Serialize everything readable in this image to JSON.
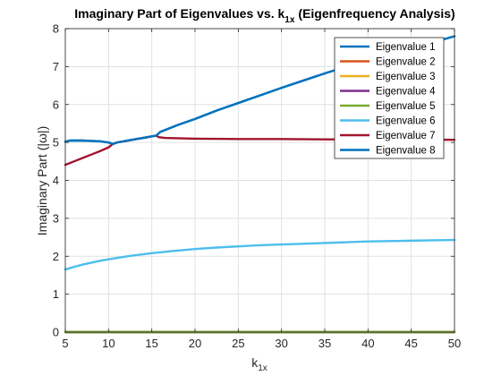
{
  "chart_data": {
    "type": "line",
    "title": "Imaginary Part of Eigenvalues vs. k",
    "title_sub": "1x",
    "title_suffix": "(Eigenfrequency Analysis)",
    "xlabel": "k",
    "xlabel_sub": "1x",
    "ylabel": "Imaginary Part (|ω|)",
    "xlim": [
      5,
      50
    ],
    "ylim": [
      0,
      8
    ],
    "xticks": [
      5,
      10,
      15,
      20,
      25,
      30,
      35,
      40,
      45,
      50
    ],
    "yticks": [
      0,
      1,
      2,
      3,
      4,
      5,
      6,
      7,
      8
    ],
    "grid": true,
    "legend_position": "top-right",
    "series": [
      {
        "name": "Eigenvalue 1",
        "color": "#0072BD",
        "points": [
          [
            5,
            5.02
          ],
          [
            5.5,
            5.05
          ],
          [
            6,
            5.05
          ],
          [
            7,
            5.05
          ],
          [
            8,
            5.04
          ],
          [
            9,
            5.03
          ],
          [
            10,
            5.0
          ],
          [
            10.5,
            4.96
          ],
          [
            11,
            5.0
          ],
          [
            12,
            5.04
          ],
          [
            13,
            5.08
          ],
          [
            14,
            5.12
          ],
          [
            15,
            5.16
          ],
          [
            15.5,
            5.18
          ],
          [
            16,
            5.28
          ],
          [
            17,
            5.37
          ],
          [
            18,
            5.46
          ],
          [
            20,
            5.62
          ],
          [
            22.5,
            5.84
          ],
          [
            25,
            6.04
          ],
          [
            27.5,
            6.24
          ],
          [
            30,
            6.44
          ],
          [
            32.5,
            6.63
          ],
          [
            35,
            6.82
          ],
          [
            37.5,
            7.0
          ],
          [
            40,
            7.16
          ],
          [
            42.5,
            7.34
          ],
          [
            45,
            7.49
          ],
          [
            47.5,
            7.64
          ],
          [
            50,
            7.8
          ]
        ]
      },
      {
        "name": "Eigenvalue 2",
        "color": "#D95319",
        "points": [
          [
            5,
            0
          ],
          [
            50,
            0
          ]
        ]
      },
      {
        "name": "Eigenvalue 3",
        "color": "#EDB120",
        "points": [
          [
            5,
            0
          ],
          [
            50,
            0
          ]
        ]
      },
      {
        "name": "Eigenvalue 4",
        "color": "#7E2F8E",
        "points": [
          [
            5,
            0
          ],
          [
            50,
            0
          ]
        ]
      },
      {
        "name": "Eigenvalue 5",
        "color": "#77AC30",
        "points": [
          [
            5,
            0
          ],
          [
            50,
            0
          ]
        ]
      },
      {
        "name": "Eigenvalue 6",
        "color": "#4DBEEE",
        "points": [
          [
            5,
            1.65
          ],
          [
            6,
            1.72
          ],
          [
            7,
            1.78
          ],
          [
            8,
            1.83
          ],
          [
            9,
            1.88
          ],
          [
            10,
            1.92
          ],
          [
            12.5,
            2.01
          ],
          [
            15,
            2.08
          ],
          [
            17.5,
            2.14
          ],
          [
            20,
            2.19
          ],
          [
            22.5,
            2.23
          ],
          [
            25,
            2.26
          ],
          [
            27.5,
            2.29
          ],
          [
            30,
            2.31
          ],
          [
            32.5,
            2.33
          ],
          [
            35,
            2.35
          ],
          [
            37.5,
            2.37
          ],
          [
            40,
            2.39
          ],
          [
            42.5,
            2.4
          ],
          [
            45,
            2.41
          ],
          [
            47.5,
            2.42
          ],
          [
            50,
            2.43
          ]
        ]
      },
      {
        "name": "Eigenvalue 7",
        "color": "#A2142F",
        "points": [
          [
            5,
            4.41
          ],
          [
            6,
            4.5
          ],
          [
            7,
            4.59
          ],
          [
            8,
            4.68
          ],
          [
            9,
            4.77
          ],
          [
            10,
            4.87
          ],
          [
            10.5,
            4.96
          ],
          [
            11,
            5.0
          ],
          [
            12,
            5.04
          ],
          [
            13,
            5.08
          ],
          [
            14,
            5.12
          ],
          [
            15,
            5.16
          ],
          [
            15.5,
            5.18
          ],
          [
            15.8,
            5.14
          ],
          [
            16.5,
            5.12
          ],
          [
            18,
            5.11
          ],
          [
            20,
            5.1
          ],
          [
            25,
            5.09
          ],
          [
            30,
            5.09
          ],
          [
            35,
            5.08
          ],
          [
            40,
            5.08
          ],
          [
            45,
            5.08
          ],
          [
            50,
            5.07
          ]
        ]
      },
      {
        "name": "Eigenvalue 8",
        "color": "#0072BD",
        "points": [
          [
            5,
            5.02
          ],
          [
            5.5,
            5.05
          ],
          [
            6,
            5.05
          ],
          [
            7,
            5.05
          ],
          [
            8,
            5.04
          ],
          [
            9,
            5.03
          ],
          [
            10,
            5.0
          ],
          [
            10.5,
            4.96
          ],
          [
            11,
            5.0
          ],
          [
            12,
            5.04
          ],
          [
            13,
            5.08
          ],
          [
            14,
            5.12
          ],
          [
            15,
            5.16
          ],
          [
            15.5,
            5.18
          ],
          [
            16,
            5.28
          ],
          [
            17,
            5.37
          ],
          [
            18,
            5.46
          ],
          [
            20,
            5.62
          ],
          [
            22.5,
            5.84
          ],
          [
            25,
            6.04
          ],
          [
            27.5,
            6.24
          ],
          [
            30,
            6.44
          ],
          [
            32.5,
            6.63
          ],
          [
            35,
            6.82
          ],
          [
            37.5,
            7.0
          ],
          [
            40,
            7.16
          ],
          [
            42.5,
            7.34
          ],
          [
            45,
            7.49
          ],
          [
            47.5,
            7.64
          ],
          [
            50,
            7.8
          ]
        ]
      }
    ]
  }
}
